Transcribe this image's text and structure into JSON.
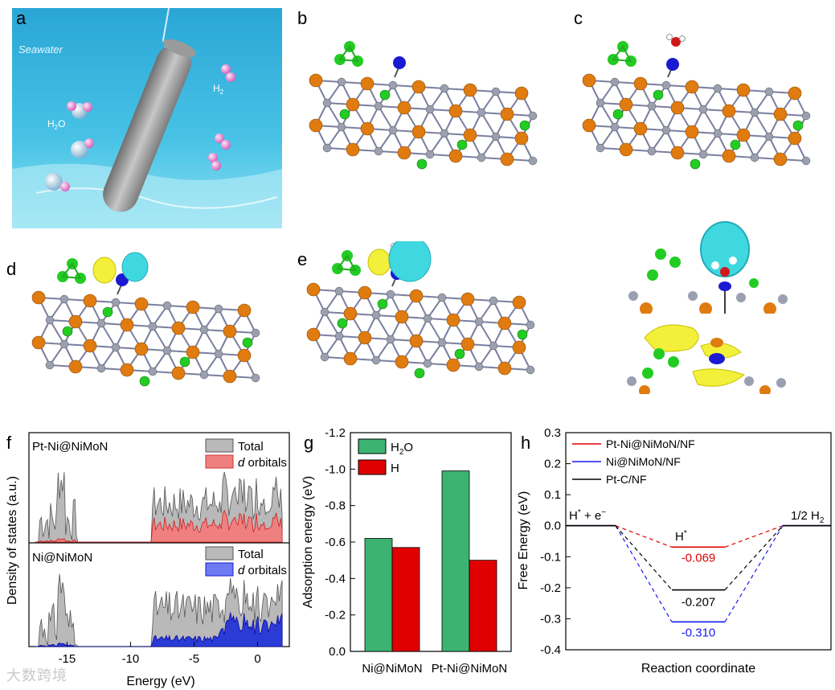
{
  "panels": {
    "a": {
      "letter": "a",
      "seawater_label": "Seawater",
      "h2o_label": "H2O",
      "h2_label": "H2"
    },
    "b": {
      "letter": "b"
    },
    "c": {
      "letter": "c"
    },
    "d": {
      "letter": "d"
    },
    "e": {
      "letter": "e"
    },
    "f": {
      "letter": "f"
    },
    "g": {
      "letter": "g"
    },
    "h": {
      "letter": "h"
    }
  },
  "watermark": "大数跨境",
  "colors": {
    "gray_fill": "#b9b9b9",
    "red_fill": "#f08080",
    "blue_fill": "#2b3bd6",
    "green_bar": "#3cb371",
    "red_bar": "#e00000",
    "line_red": "#e00000",
    "line_blue": "#1a1aee",
    "line_black": "#000000",
    "orange_atom": "#e07b10",
    "gray_atom": "#9aa0b0",
    "green_atom": "#22cc22",
    "blue_atom": "#1a1ad0"
  },
  "chart_data": [
    {
      "id": "f",
      "type": "area",
      "xlabel": "Energy (eV)",
      "ylabel": "Density of states (a.u.)",
      "xlim": [
        -18,
        2.5
      ],
      "xticks": [
        -15,
        -10,
        -5,
        0
      ],
      "subplots": [
        {
          "name": "Pt-Ni@NiMoN",
          "legend": [
            "Total",
            "d orbitals"
          ],
          "legend_italic": [
            "",
            "d"
          ]
        },
        {
          "name": "Ni@NiMoN",
          "legend": [
            "Total",
            "d orbitals"
          ],
          "legend_italic": [
            "",
            "d"
          ]
        }
      ]
    },
    {
      "id": "g",
      "type": "bar",
      "ylabel": "Adsorption energy (eV)",
      "ylim": [
        0,
        -1.2
      ],
      "yticks": [
        0.0,
        -0.2,
        -0.4,
        -0.6,
        -0.8,
        -1.0,
        -1.2
      ],
      "ytick_labels": [
        "0.0",
        "-0.2",
        "-0.4",
        "-0.6",
        "-0.8",
        "-1.0",
        "-1.2"
      ],
      "categories": [
        "Ni@NiMoN",
        "Pt-Ni@NiMoN"
      ],
      "series": [
        {
          "name": "H2O",
          "values": [
            -0.62,
            -0.99
          ]
        },
        {
          "name": "H",
          "values": [
            -0.57,
            -0.5
          ]
        }
      ]
    },
    {
      "id": "h",
      "type": "line",
      "xlabel": "Reaction coordinate",
      "ylabel": "Free Energy (eV)",
      "ylim": [
        -0.4,
        0.3
      ],
      "yticks": [
        0.3,
        0.2,
        0.1,
        0.0,
        -0.1,
        -0.2,
        -0.3,
        -0.4
      ],
      "ytick_labels": [
        "0.3",
        "0.2",
        "0.1",
        "0.0",
        "-0.1",
        "-0.2",
        "-0.3",
        "-0.4"
      ],
      "state_labels": {
        "initial": "H* + e−",
        "intermediate": "H*",
        "final": "1/2 H2"
      },
      "series": [
        {
          "name": "Pt-Ni@NiMoN/NF",
          "values": [
            0,
            -0.069,
            0
          ],
          "label": "-0.069"
        },
        {
          "name": "Ni@NiMoN/NF",
          "values": [
            0,
            -0.31,
            0
          ],
          "label": "-0.310"
        },
        {
          "name": "Pt-C/NF",
          "values": [
            0,
            -0.207,
            0
          ],
          "label": "-0.207"
        }
      ]
    }
  ]
}
